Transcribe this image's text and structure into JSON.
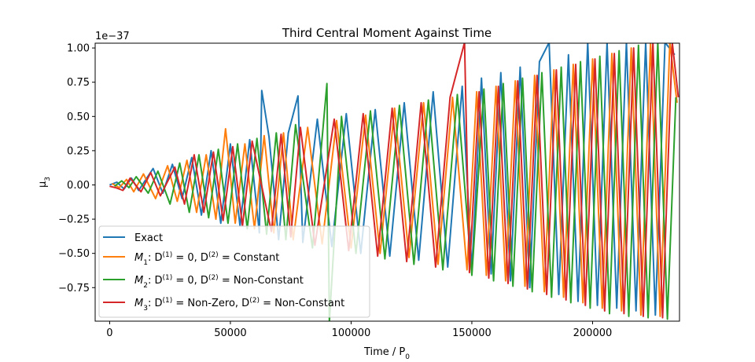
{
  "chart_data": {
    "type": "line",
    "title": "Third Central Moment Against Time",
    "xlabel": "Time / P₀",
    "ylabel": "μ₃",
    "offset_text": "1e−37",
    "xlim": [
      -6000,
      236000
    ],
    "ylim": [
      -0.995,
      1.035
    ],
    "x_ticks": [
      0,
      50000,
      100000,
      150000,
      200000
    ],
    "x_tick_labels": [
      "0",
      "50000",
      "100000",
      "150000",
      "200000"
    ],
    "y_ticks": [
      -0.75,
      -0.5,
      -0.25,
      0.0,
      0.25,
      0.5,
      0.75,
      1.0
    ],
    "y_tick_labels": [
      "−0.75",
      "−0.50",
      "−0.25",
      "0.00",
      "0.25",
      "0.50",
      "0.75",
      "1.00"
    ],
    "grid": false,
    "legend_position": "lower-left",
    "series": [
      {
        "name": "Exact",
        "legend_label": "Exact",
        "color": "#1f77b4",
        "x": [
          0,
          3000,
          6000,
          9000,
          12000,
          18000,
          22000,
          26000,
          30000,
          34000,
          38000,
          42000,
          46000,
          50000,
          54000,
          58000,
          62000,
          63000,
          66000,
          70000,
          74000,
          78000,
          80000,
          86000,
          92000,
          98000,
          104000,
          110000,
          116000,
          122000,
          128000,
          134000,
          140000,
          146000,
          150000,
          154000,
          158000,
          162000,
          166000,
          170000,
          174000,
          178000,
          182000,
          186000,
          190000,
          194000,
          198000,
          202000,
          206000,
          210000,
          214000,
          218000,
          222000,
          226000,
          230000,
          234000
        ],
        "y": [
          0,
          0.02,
          -0.03,
          0.05,
          -0.04,
          0.12,
          -0.06,
          0.15,
          -0.1,
          0.2,
          -0.22,
          0.25,
          -0.28,
          0.3,
          -0.3,
          0.33,
          -0.35,
          0.69,
          0.35,
          -0.4,
          0.38,
          0.65,
          -0.42,
          0.48,
          -0.45,
          0.52,
          -0.5,
          0.55,
          -0.52,
          0.6,
          -0.55,
          0.68,
          -0.6,
          0.72,
          -0.62,
          0.78,
          -0.65,
          0.82,
          -0.7,
          0.86,
          -0.75,
          0.9,
          1.04,
          -0.8,
          0.95,
          -0.85,
          1.04,
          -0.88,
          1.04,
          -0.9,
          1.04,
          -0.92,
          1.04,
          -0.95,
          1.04,
          0.95
        ]
      },
      {
        "name": "M1",
        "legend_label": "M1: D(1) = 0, D(2) = Constant",
        "legend_main": "M",
        "legend_sub": "1",
        "legend_prefix": ":  D",
        "legend_sup1": "(1)",
        "legend_mid": " = 0, D",
        "legend_sup2": "(2)",
        "legend_tail": " =  Constant",
        "color": "#ff7f0e",
        "x": [
          1000,
          4000,
          7000,
          10000,
          14000,
          19000,
          24000,
          28000,
          32000,
          36000,
          40000,
          44000,
          48000,
          52000,
          56000,
          60000,
          64000,
          68000,
          72000,
          76000,
          82000,
          88000,
          94000,
          100000,
          106000,
          112000,
          118000,
          124000,
          130000,
          136000,
          142000,
          148000,
          152000,
          156000,
          160000,
          164000,
          168000,
          172000,
          176000,
          180000,
          184000,
          188000,
          192000,
          196000,
          200000,
          204000,
          208000,
          212000,
          216000,
          220000,
          224000,
          228000,
          232000,
          235000
        ],
        "y": [
          0.01,
          -0.02,
          0.04,
          -0.05,
          0.08,
          -0.1,
          0.14,
          -0.12,
          0.18,
          -0.2,
          0.22,
          -0.25,
          0.41,
          -0.28,
          0.3,
          -0.32,
          0.36,
          -0.35,
          0.38,
          -0.4,
          0.42,
          -0.43,
          0.47,
          -0.46,
          0.51,
          -0.5,
          0.56,
          -0.53,
          0.6,
          -0.58,
          0.64,
          -0.62,
          0.68,
          -0.66,
          0.72,
          -0.7,
          0.76,
          -0.74,
          0.8,
          -0.78,
          0.84,
          -0.82,
          0.88,
          -0.86,
          0.92,
          -0.9,
          0.96,
          -0.92,
          1.0,
          -0.95,
          1.04,
          -0.96,
          1.04,
          0.6
        ]
      },
      {
        "name": "M2",
        "legend_label": "M2: D(1) = 0, D(2) = Non-Constant",
        "legend_main": "M",
        "legend_sub": "2",
        "legend_prefix": ":  D",
        "legend_sup1": "(1)",
        "legend_mid": " = 0, D",
        "legend_sup2": "(2)",
        "legend_tail": " =  Non-Constant",
        "color": "#2ca02c",
        "x": [
          2000,
          5000,
          8000,
          11000,
          16000,
          20000,
          25000,
          29000,
          33000,
          37000,
          41000,
          45000,
          49000,
          53000,
          57000,
          61000,
          65000,
          69000,
          73000,
          77000,
          84000,
          90000,
          91000,
          96000,
          102000,
          108000,
          114000,
          120000,
          126000,
          132000,
          138000,
          144000,
          150000,
          155000,
          159000,
          163000,
          167000,
          171000,
          175000,
          179000,
          183000,
          187000,
          191000,
          195000,
          199000,
          203000,
          207000,
          211000,
          215000,
          219000,
          223000,
          227000,
          231000,
          234500
        ],
        "y": [
          -0.01,
          0.03,
          -0.02,
          0.06,
          -0.06,
          0.1,
          -0.14,
          0.16,
          -0.2,
          0.22,
          -0.24,
          0.26,
          -0.28,
          0.3,
          -0.32,
          0.34,
          -0.36,
          0.38,
          -0.4,
          0.44,
          -0.46,
          0.74,
          -1.0,
          0.5,
          -0.5,
          0.54,
          -0.54,
          0.58,
          -0.58,
          0.62,
          -0.62,
          0.66,
          -0.66,
          0.7,
          -0.7,
          0.74,
          -0.74,
          0.78,
          -0.78,
          0.82,
          -0.82,
          0.86,
          -0.86,
          0.9,
          -0.9,
          0.94,
          -0.94,
          0.98,
          -0.96,
          1.02,
          -0.97,
          1.04,
          -0.98,
          0.64
        ]
      },
      {
        "name": "M3",
        "legend_label": "M3: D(1) = Non-Zero, D(2) = Non-Constant",
        "legend_main": "M",
        "legend_sub": "3",
        "legend_prefix": ":  D",
        "legend_sup1": "(1)",
        "legend_mid": " = Non-Zero, D",
        "legend_sup2": "(2)",
        "legend_tail": " =  Non-Constant",
        "color": "#d62728",
        "x": [
          0,
          2500,
          5500,
          8500,
          13000,
          17000,
          21000,
          27000,
          31000,
          35000,
          39000,
          43000,
          47000,
          51000,
          55000,
          59000,
          67000,
          71000,
          75000,
          79000,
          85000,
          93000,
          99000,
          105000,
          111000,
          117000,
          123000,
          129000,
          135000,
          141000,
          147000,
          149000,
          153000,
          157000,
          161000,
          165000,
          169000,
          173000,
          177000,
          181000,
          185000,
          189000,
          193000,
          197000,
          201000,
          205000,
          209000,
          213000,
          217000,
          221000,
          225000,
          229000,
          233000,
          235500
        ],
        "y": [
          -0.01,
          -0.02,
          -0.04,
          0.05,
          -0.05,
          0.09,
          -0.08,
          0.13,
          -0.14,
          0.22,
          -0.2,
          0.24,
          -0.26,
          0.28,
          -0.3,
          0.32,
          -0.34,
          0.37,
          -0.38,
          0.42,
          -0.44,
          0.48,
          -0.48,
          0.52,
          -0.52,
          0.56,
          -0.56,
          0.6,
          -0.6,
          0.64,
          1.04,
          -0.64,
          0.68,
          -0.68,
          0.72,
          -0.72,
          0.76,
          -0.76,
          0.8,
          -0.8,
          0.84,
          -0.84,
          0.88,
          -0.88,
          0.92,
          -0.92,
          0.96,
          -0.94,
          1.0,
          -0.96,
          1.04,
          -0.97,
          1.04,
          0.64
        ]
      }
    ]
  }
}
